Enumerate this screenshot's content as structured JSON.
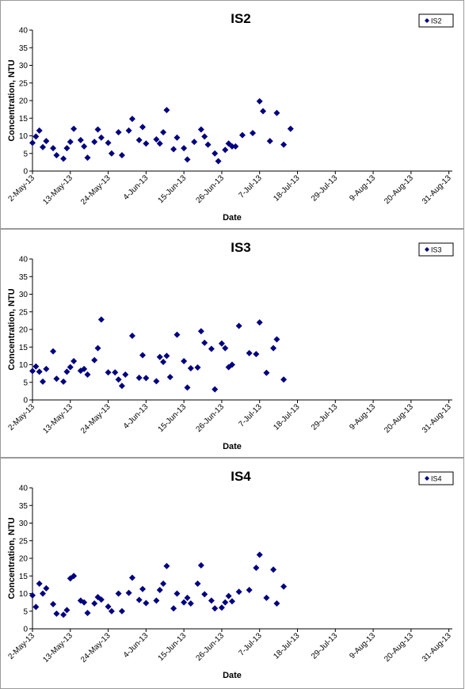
{
  "chart_data": [
    {
      "type": "scatter",
      "title": "IS2",
      "xlabel": "Date",
      "ylabel": "Concentration, NTU",
      "ylim": [
        0,
        40
      ],
      "yticks": [
        0,
        5,
        10,
        15,
        20,
        25,
        30,
        35,
        40
      ],
      "xlim": [
        "2013-05-02",
        "2013-09-01"
      ],
      "xtick_dates": [
        "2013-05-02",
        "2013-05-13",
        "2013-05-24",
        "2013-06-04",
        "2013-06-15",
        "2013-06-26",
        "2013-07-07",
        "2013-07-18",
        "2013-07-29",
        "2013-08-09",
        "2013-08-20",
        "2013-08-31"
      ],
      "xtick_labels": [
        "2-May-13",
        "13-May-13",
        "24-May-13",
        "4-Jun-13",
        "15-Jun-13",
        "26-Jun-13",
        "7-Jul-13",
        "18-Jul-13",
        "29-Jul-13",
        "9-Aug-13",
        "20-Aug-13",
        "31-Aug-13"
      ],
      "legend": "top-right",
      "grid": false,
      "series": [
        {
          "name": "IS2",
          "color": "#00007f",
          "points": [
            [
              "2013-05-02",
              8.0
            ],
            [
              "2013-05-03",
              9.8
            ],
            [
              "2013-05-04",
              11.5
            ],
            [
              "2013-05-05",
              6.8
            ],
            [
              "2013-05-06",
              8.5
            ],
            [
              "2013-05-08",
              6.5
            ],
            [
              "2013-05-09",
              4.5
            ],
            [
              "2013-05-11",
              3.5
            ],
            [
              "2013-05-12",
              6.5
            ],
            [
              "2013-05-13",
              8.3
            ],
            [
              "2013-05-14",
              12.0
            ],
            [
              "2013-05-16",
              8.8
            ],
            [
              "2013-05-17",
              7.0
            ],
            [
              "2013-05-18",
              3.8
            ],
            [
              "2013-05-20",
              8.3
            ],
            [
              "2013-05-21",
              11.8
            ],
            [
              "2013-05-22",
              9.5
            ],
            [
              "2013-05-24",
              8.0
            ],
            [
              "2013-05-25",
              5.0
            ],
            [
              "2013-05-27",
              11.0
            ],
            [
              "2013-05-28",
              4.5
            ],
            [
              "2013-05-30",
              11.5
            ],
            [
              "2013-05-31",
              14.8
            ],
            [
              "2013-06-02",
              8.8
            ],
            [
              "2013-06-03",
              12.5
            ],
            [
              "2013-06-04",
              7.8
            ],
            [
              "2013-06-07",
              9.0
            ],
            [
              "2013-06-08",
              7.8
            ],
            [
              "2013-06-09",
              11.0
            ],
            [
              "2013-06-10",
              17.3
            ],
            [
              "2013-06-12",
              6.2
            ],
            [
              "2013-06-13",
              9.5
            ],
            [
              "2013-06-15",
              6.5
            ],
            [
              "2013-06-16",
              3.3
            ],
            [
              "2013-06-18",
              8.3
            ],
            [
              "2013-06-20",
              11.8
            ],
            [
              "2013-06-21",
              9.8
            ],
            [
              "2013-06-22",
              7.5
            ],
            [
              "2013-06-24",
              5.0
            ],
            [
              "2013-06-25",
              2.8
            ],
            [
              "2013-06-27",
              6.0
            ],
            [
              "2013-06-28",
              7.8
            ],
            [
              "2013-06-29",
              7.0
            ],
            [
              "2013-06-30",
              7.0
            ],
            [
              "2013-07-02",
              10.2
            ],
            [
              "2013-07-05",
              10.8
            ],
            [
              "2013-07-07",
              19.8
            ],
            [
              "2013-07-08",
              17.0
            ],
            [
              "2013-07-10",
              8.5
            ],
            [
              "2013-07-12",
              16.5
            ],
            [
              "2013-07-14",
              7.5
            ],
            [
              "2013-07-16",
              12.0
            ]
          ]
        }
      ]
    },
    {
      "type": "scatter",
      "title": "IS3",
      "xlabel": "Date",
      "ylabel": "Concentration, NTU",
      "ylim": [
        0,
        40
      ],
      "yticks": [
        0,
        5,
        10,
        15,
        20,
        25,
        30,
        35,
        40
      ],
      "xlim": [
        "2013-05-02",
        "2013-09-01"
      ],
      "xtick_dates": [
        "2013-05-02",
        "2013-05-13",
        "2013-05-24",
        "2013-06-04",
        "2013-06-15",
        "2013-06-26",
        "2013-07-07",
        "2013-07-18",
        "2013-07-29",
        "2013-08-09",
        "2013-08-20",
        "2013-08-31"
      ],
      "xtick_labels": [
        "2-May-13",
        "13-May-13",
        "24-May-13",
        "4-Jun-13",
        "15-Jun-13",
        "26-Jun-13",
        "7-Jul-13",
        "18-Jul-13",
        "29-Jul-13",
        "9-Aug-13",
        "20-Aug-13",
        "31-Aug-13"
      ],
      "legend": "top-right",
      "grid": false,
      "series": [
        {
          "name": "IS3",
          "color": "#00007f",
          "points": [
            [
              "2013-05-02",
              8.2
            ],
            [
              "2013-05-03",
              9.5
            ],
            [
              "2013-05-04",
              8.0
            ],
            [
              "2013-05-05",
              5.2
            ],
            [
              "2013-05-06",
              8.8
            ],
            [
              "2013-05-08",
              13.8
            ],
            [
              "2013-05-09",
              6.0
            ],
            [
              "2013-05-11",
              5.2
            ],
            [
              "2013-05-12",
              8.0
            ],
            [
              "2013-05-13",
              9.3
            ],
            [
              "2013-05-14",
              11.0
            ],
            [
              "2013-05-16",
              8.3
            ],
            [
              "2013-05-17",
              8.8
            ],
            [
              "2013-05-18",
              7.2
            ],
            [
              "2013-05-20",
              11.3
            ],
            [
              "2013-05-21",
              14.7
            ],
            [
              "2013-05-22",
              22.8
            ],
            [
              "2013-05-24",
              7.8
            ],
            [
              "2013-05-26",
              7.8
            ],
            [
              "2013-05-27",
              5.8
            ],
            [
              "2013-05-28",
              4.0
            ],
            [
              "2013-05-29",
              7.2
            ],
            [
              "2013-05-31",
              18.2
            ],
            [
              "2013-06-02",
              6.3
            ],
            [
              "2013-06-03",
              12.7
            ],
            [
              "2013-06-04",
              6.2
            ],
            [
              "2013-06-07",
              5.3
            ],
            [
              "2013-06-08",
              12.2
            ],
            [
              "2013-06-09",
              10.8
            ],
            [
              "2013-06-10",
              12.5
            ],
            [
              "2013-06-11",
              6.5
            ],
            [
              "2013-06-13",
              18.5
            ],
            [
              "2013-06-15",
              11.0
            ],
            [
              "2013-06-16",
              3.5
            ],
            [
              "2013-06-17",
              9.0
            ],
            [
              "2013-06-19",
              9.2
            ],
            [
              "2013-06-20",
              19.5
            ],
            [
              "2013-06-21",
              16.2
            ],
            [
              "2013-06-23",
              14.5
            ],
            [
              "2013-06-24",
              3.0
            ],
            [
              "2013-06-26",
              16.0
            ],
            [
              "2013-06-27",
              14.7
            ],
            [
              "2013-06-28",
              9.3
            ],
            [
              "2013-06-29",
              10.0
            ],
            [
              "2013-07-01",
              21.0
            ],
            [
              "2013-07-04",
              13.3
            ],
            [
              "2013-07-06",
              13.0
            ],
            [
              "2013-07-07",
              22.0
            ],
            [
              "2013-07-09",
              7.7
            ],
            [
              "2013-07-11",
              14.7
            ],
            [
              "2013-07-12",
              17.2
            ],
            [
              "2013-07-14",
              5.8
            ]
          ]
        }
      ]
    },
    {
      "type": "scatter",
      "title": "IS4",
      "xlabel": "Date",
      "ylabel": "Concentration, NTU",
      "ylim": [
        0,
        40
      ],
      "yticks": [
        0,
        5,
        10,
        15,
        20,
        25,
        30,
        35,
        40
      ],
      "xlim": [
        "2013-05-02",
        "2013-09-01"
      ],
      "xtick_dates": [
        "2013-05-02",
        "2013-05-13",
        "2013-05-24",
        "2013-06-04",
        "2013-06-15",
        "2013-06-26",
        "2013-07-07",
        "2013-07-18",
        "2013-07-29",
        "2013-08-09",
        "2013-08-20",
        "2013-08-31"
      ],
      "xtick_labels": [
        "2-May-13",
        "13-May-13",
        "24-May-13",
        "4-Jun-13",
        "15-Jun-13",
        "26-Jun-13",
        "7-Jul-13",
        "18-Jul-13",
        "29-Jul-13",
        "9-Aug-13",
        "20-Aug-13",
        "31-Aug-13"
      ],
      "legend": "top-right",
      "grid": false,
      "series": [
        {
          "name": "IS4",
          "color": "#00007f",
          "points": [
            [
              "2013-05-02",
              9.5
            ],
            [
              "2013-05-03",
              6.2
            ],
            [
              "2013-05-04",
              12.8
            ],
            [
              "2013-05-05",
              10.0
            ],
            [
              "2013-05-06",
              11.5
            ],
            [
              "2013-05-08",
              7.0
            ],
            [
              "2013-05-09",
              4.3
            ],
            [
              "2013-05-11",
              4.0
            ],
            [
              "2013-05-12",
              5.3
            ],
            [
              "2013-05-13",
              14.3
            ],
            [
              "2013-05-14",
              15.0
            ],
            [
              "2013-05-16",
              8.0
            ],
            [
              "2013-05-17",
              7.5
            ],
            [
              "2013-05-18",
              4.5
            ],
            [
              "2013-05-20",
              7.2
            ],
            [
              "2013-05-21",
              9.0
            ],
            [
              "2013-05-22",
              8.3
            ],
            [
              "2013-05-24",
              6.3
            ],
            [
              "2013-05-25",
              5.0
            ],
            [
              "2013-05-27",
              10.0
            ],
            [
              "2013-05-28",
              5.0
            ],
            [
              "2013-05-30",
              10.2
            ],
            [
              "2013-05-31",
              14.5
            ],
            [
              "2013-06-02",
              8.2
            ],
            [
              "2013-06-03",
              11.3
            ],
            [
              "2013-06-04",
              7.3
            ],
            [
              "2013-06-07",
              8.0
            ],
            [
              "2013-06-08",
              11.0
            ],
            [
              "2013-06-09",
              12.8
            ],
            [
              "2013-06-10",
              17.8
            ],
            [
              "2013-06-12",
              5.8
            ],
            [
              "2013-06-13",
              10.0
            ],
            [
              "2013-06-15",
              7.5
            ],
            [
              "2013-06-16",
              8.8
            ],
            [
              "2013-06-17",
              7.2
            ],
            [
              "2013-06-19",
              12.8
            ],
            [
              "2013-06-20",
              18.0
            ],
            [
              "2013-06-21",
              9.8
            ],
            [
              "2013-06-23",
              8.0
            ],
            [
              "2013-06-24",
              5.8
            ],
            [
              "2013-06-26",
              6.0
            ],
            [
              "2013-06-27",
              7.5
            ],
            [
              "2013-06-28",
              9.3
            ],
            [
              "2013-06-29",
              7.8
            ],
            [
              "2013-07-01",
              10.5
            ],
            [
              "2013-07-04",
              11.0
            ],
            [
              "2013-07-06",
              17.3
            ],
            [
              "2013-07-07",
              21.0
            ],
            [
              "2013-07-09",
              8.8
            ],
            [
              "2013-07-11",
              16.8
            ],
            [
              "2013-07-12",
              7.2
            ],
            [
              "2013-07-14",
              12.0
            ]
          ]
        }
      ]
    }
  ]
}
